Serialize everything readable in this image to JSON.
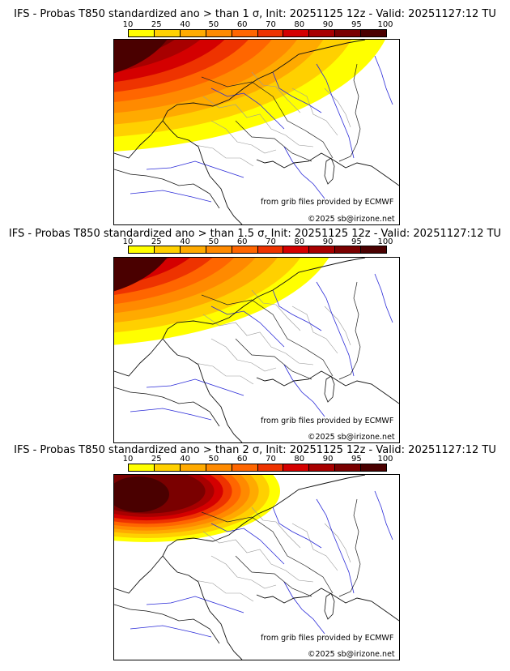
{
  "colorbar": {
    "labels": [
      "10",
      "25",
      "40",
      "50",
      "60",
      "70",
      "80",
      "90",
      "95",
      "100"
    ],
    "colors": [
      "#ffff00",
      "#ffd000",
      "#ffaa00",
      "#ff8a00",
      "#ff6600",
      "#ee3300",
      "#d40000",
      "#a80000",
      "#7a0000",
      "#4a0000"
    ]
  },
  "credits": {
    "source": "from grib files provided by ECMWF",
    "copyright": "©2025 sb@irizone.net"
  },
  "panels": [
    {
      "title": "IFS - Probas T850  standardized ano > than 1 σ, Init: 20251125 12z - Valid: 20251127:12 TU",
      "threshold": "1 σ"
    },
    {
      "title": "IFS - Probas T850  standardized ano > than 1.5 σ, Init: 20251125 12z - Valid: 20251127:12 TU",
      "threshold": "1.5 σ"
    },
    {
      "title": "IFS - Probas T850  standardized ano > than 2 σ, Init: 20251125 12z - Valid: 20251127:12 TU",
      "threshold": "2 σ"
    }
  ]
}
